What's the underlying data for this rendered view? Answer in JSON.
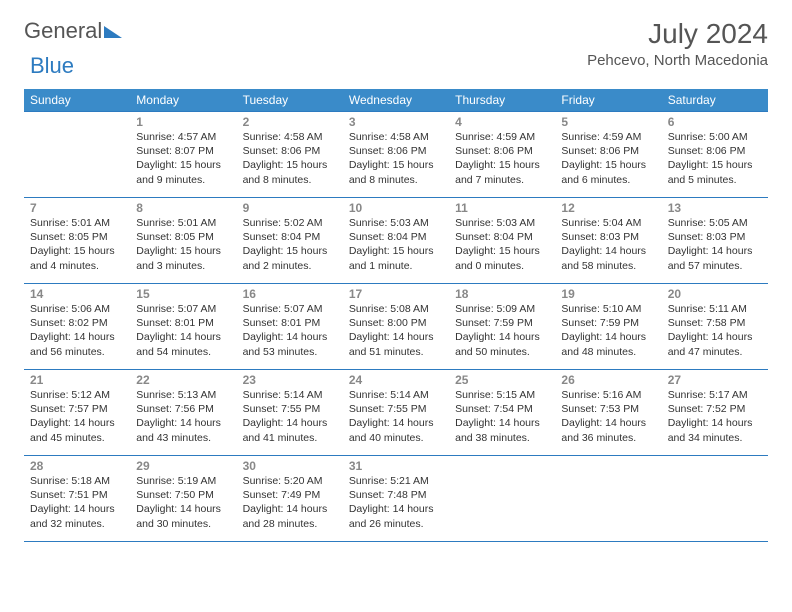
{
  "logo": {
    "word1": "General",
    "word2": "Blue"
  },
  "header": {
    "title": "July 2024",
    "subtitle": "Pehcevo, North Macedonia"
  },
  "daysOfWeek": [
    "Sunday",
    "Monday",
    "Tuesday",
    "Wednesday",
    "Thursday",
    "Friday",
    "Saturday"
  ],
  "colors": {
    "headerBg": "#3a8bc9",
    "border": "#2d7bc0",
    "text": "#333333",
    "muted": "#888888"
  },
  "weeks": [
    [
      {
        "n": "",
        "sr": "",
        "ss": "",
        "dl": ""
      },
      {
        "n": "1",
        "sr": "Sunrise: 4:57 AM",
        "ss": "Sunset: 8:07 PM",
        "dl": "Daylight: 15 hours and 9 minutes."
      },
      {
        "n": "2",
        "sr": "Sunrise: 4:58 AM",
        "ss": "Sunset: 8:06 PM",
        "dl": "Daylight: 15 hours and 8 minutes."
      },
      {
        "n": "3",
        "sr": "Sunrise: 4:58 AM",
        "ss": "Sunset: 8:06 PM",
        "dl": "Daylight: 15 hours and 8 minutes."
      },
      {
        "n": "4",
        "sr": "Sunrise: 4:59 AM",
        "ss": "Sunset: 8:06 PM",
        "dl": "Daylight: 15 hours and 7 minutes."
      },
      {
        "n": "5",
        "sr": "Sunrise: 4:59 AM",
        "ss": "Sunset: 8:06 PM",
        "dl": "Daylight: 15 hours and 6 minutes."
      },
      {
        "n": "6",
        "sr": "Sunrise: 5:00 AM",
        "ss": "Sunset: 8:06 PM",
        "dl": "Daylight: 15 hours and 5 minutes."
      }
    ],
    [
      {
        "n": "7",
        "sr": "Sunrise: 5:01 AM",
        "ss": "Sunset: 8:05 PM",
        "dl": "Daylight: 15 hours and 4 minutes."
      },
      {
        "n": "8",
        "sr": "Sunrise: 5:01 AM",
        "ss": "Sunset: 8:05 PM",
        "dl": "Daylight: 15 hours and 3 minutes."
      },
      {
        "n": "9",
        "sr": "Sunrise: 5:02 AM",
        "ss": "Sunset: 8:04 PM",
        "dl": "Daylight: 15 hours and 2 minutes."
      },
      {
        "n": "10",
        "sr": "Sunrise: 5:03 AM",
        "ss": "Sunset: 8:04 PM",
        "dl": "Daylight: 15 hours and 1 minute."
      },
      {
        "n": "11",
        "sr": "Sunrise: 5:03 AM",
        "ss": "Sunset: 8:04 PM",
        "dl": "Daylight: 15 hours and 0 minutes."
      },
      {
        "n": "12",
        "sr": "Sunrise: 5:04 AM",
        "ss": "Sunset: 8:03 PM",
        "dl": "Daylight: 14 hours and 58 minutes."
      },
      {
        "n": "13",
        "sr": "Sunrise: 5:05 AM",
        "ss": "Sunset: 8:03 PM",
        "dl": "Daylight: 14 hours and 57 minutes."
      }
    ],
    [
      {
        "n": "14",
        "sr": "Sunrise: 5:06 AM",
        "ss": "Sunset: 8:02 PM",
        "dl": "Daylight: 14 hours and 56 minutes."
      },
      {
        "n": "15",
        "sr": "Sunrise: 5:07 AM",
        "ss": "Sunset: 8:01 PM",
        "dl": "Daylight: 14 hours and 54 minutes."
      },
      {
        "n": "16",
        "sr": "Sunrise: 5:07 AM",
        "ss": "Sunset: 8:01 PM",
        "dl": "Daylight: 14 hours and 53 minutes."
      },
      {
        "n": "17",
        "sr": "Sunrise: 5:08 AM",
        "ss": "Sunset: 8:00 PM",
        "dl": "Daylight: 14 hours and 51 minutes."
      },
      {
        "n": "18",
        "sr": "Sunrise: 5:09 AM",
        "ss": "Sunset: 7:59 PM",
        "dl": "Daylight: 14 hours and 50 minutes."
      },
      {
        "n": "19",
        "sr": "Sunrise: 5:10 AM",
        "ss": "Sunset: 7:59 PM",
        "dl": "Daylight: 14 hours and 48 minutes."
      },
      {
        "n": "20",
        "sr": "Sunrise: 5:11 AM",
        "ss": "Sunset: 7:58 PM",
        "dl": "Daylight: 14 hours and 47 minutes."
      }
    ],
    [
      {
        "n": "21",
        "sr": "Sunrise: 5:12 AM",
        "ss": "Sunset: 7:57 PM",
        "dl": "Daylight: 14 hours and 45 minutes."
      },
      {
        "n": "22",
        "sr": "Sunrise: 5:13 AM",
        "ss": "Sunset: 7:56 PM",
        "dl": "Daylight: 14 hours and 43 minutes."
      },
      {
        "n": "23",
        "sr": "Sunrise: 5:14 AM",
        "ss": "Sunset: 7:55 PM",
        "dl": "Daylight: 14 hours and 41 minutes."
      },
      {
        "n": "24",
        "sr": "Sunrise: 5:14 AM",
        "ss": "Sunset: 7:55 PM",
        "dl": "Daylight: 14 hours and 40 minutes."
      },
      {
        "n": "25",
        "sr": "Sunrise: 5:15 AM",
        "ss": "Sunset: 7:54 PM",
        "dl": "Daylight: 14 hours and 38 minutes."
      },
      {
        "n": "26",
        "sr": "Sunrise: 5:16 AM",
        "ss": "Sunset: 7:53 PM",
        "dl": "Daylight: 14 hours and 36 minutes."
      },
      {
        "n": "27",
        "sr": "Sunrise: 5:17 AM",
        "ss": "Sunset: 7:52 PM",
        "dl": "Daylight: 14 hours and 34 minutes."
      }
    ],
    [
      {
        "n": "28",
        "sr": "Sunrise: 5:18 AM",
        "ss": "Sunset: 7:51 PM",
        "dl": "Daylight: 14 hours and 32 minutes."
      },
      {
        "n": "29",
        "sr": "Sunrise: 5:19 AM",
        "ss": "Sunset: 7:50 PM",
        "dl": "Daylight: 14 hours and 30 minutes."
      },
      {
        "n": "30",
        "sr": "Sunrise: 5:20 AM",
        "ss": "Sunset: 7:49 PM",
        "dl": "Daylight: 14 hours and 28 minutes."
      },
      {
        "n": "31",
        "sr": "Sunrise: 5:21 AM",
        "ss": "Sunset: 7:48 PM",
        "dl": "Daylight: 14 hours and 26 minutes."
      },
      {
        "n": "",
        "sr": "",
        "ss": "",
        "dl": ""
      },
      {
        "n": "",
        "sr": "",
        "ss": "",
        "dl": ""
      },
      {
        "n": "",
        "sr": "",
        "ss": "",
        "dl": ""
      }
    ]
  ]
}
